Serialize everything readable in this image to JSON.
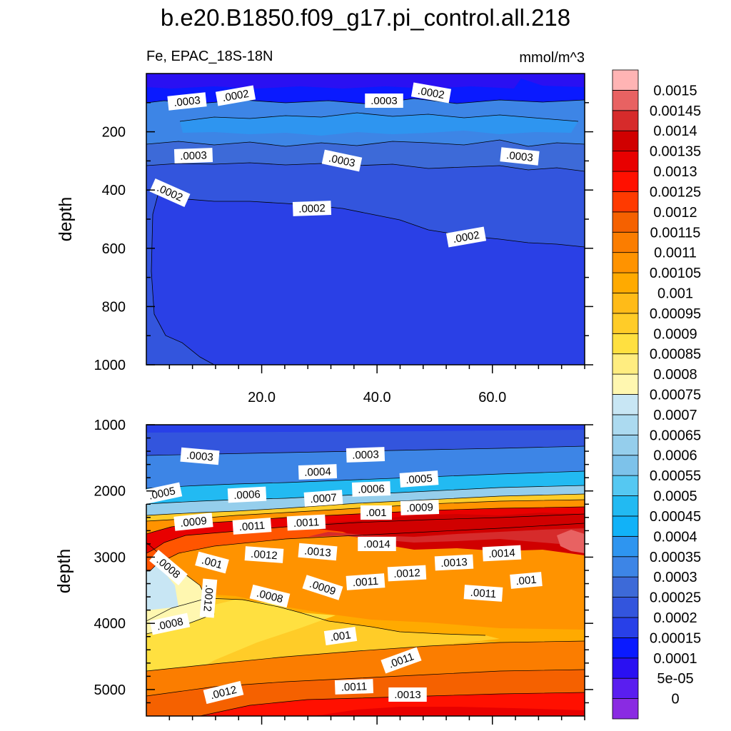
{
  "chart_data": {
    "type": "contour",
    "title": "b.e20.B1850.f09_g17.pi_control.all.218",
    "variable_label": "Fe, EPAC_18S-18N",
    "units_label": "mmol/m^3",
    "colorbar": {
      "levels": [
        "0",
        "5e-05",
        "0.0001",
        "0.00015",
        "0.0002",
        "0.00025",
        "0.0003",
        "0.00035",
        "0.0004",
        "0.00045",
        "0.0005",
        "0.00055",
        "0.0006",
        "0.00065",
        "0.0007",
        "0.00075",
        "0.0008",
        "0.00085",
        "0.0009",
        "0.00095",
        "0.001",
        "0.00105",
        "0.0011",
        "0.00115",
        "0.0012",
        "0.00125",
        "0.0013",
        "0.00135",
        "0.0014",
        "0.00145",
        "0.0015"
      ],
      "colors": [
        "#8a2be2",
        "#5a1ef0",
        "#2a10f2",
        "#0a1aff",
        "#2840e8",
        "#3355dd",
        "#3d6ad8",
        "#3d85e6",
        "#2e95f0",
        "#11b2f8",
        "#22baf2",
        "#55c8f2",
        "#7dc2ea",
        "#95ceec",
        "#acdaf0",
        "#c8e6f4",
        "#fff7b0",
        "#ffed80",
        "#ffe040",
        "#ffcc28",
        "#ffbb18",
        "#ffaa00",
        "#ff9300",
        "#fb7d00",
        "#f56100",
        "#ff3a00",
        "#ff1000",
        "#e80000",
        "#d00000",
        "#d62b2b",
        "#e86262",
        "#ffb4b4"
      ]
    },
    "top_panel": {
      "ylabel": "depth",
      "xlim": [
        0,
        76
      ],
      "ylim": [
        1000,
        0
      ],
      "xticks": [
        "20.0",
        "40.0",
        "60.0"
      ],
      "yticks": [
        "200",
        "400",
        "600",
        "800",
        "1000"
      ],
      "contour_labels": [
        ".0003",
        ".0002",
        ".0003",
        ".0002",
        ".0003",
        ".0003",
        ".0003",
        ".0002",
        ".0002",
        ".0002"
      ]
    },
    "bottom_panel": {
      "ylabel": "depth",
      "xlim": [
        0,
        76
      ],
      "ylim": [
        5400,
        1000
      ],
      "yticks": [
        "1000",
        "2000",
        "3000",
        "4000",
        "5000"
      ],
      "contour_labels": [
        ".0003",
        ".0003",
        ".0004",
        ".0005",
        ".0005",
        ".0006",
        ".0006",
        ".0007",
        ".0009",
        ".001",
        ".0009",
        ".0011",
        ".0011",
        ".0014",
        ".0012",
        ".0013",
        ".0013",
        ".0014",
        ".0012",
        ".0008",
        ".001",
        ".0011",
        ".001",
        ".0009",
        ".0008",
        ".0011",
        ".0012",
        ".0008",
        ".001",
        ".0011",
        ".0011",
        ".0012",
        ".0013"
      ]
    }
  }
}
